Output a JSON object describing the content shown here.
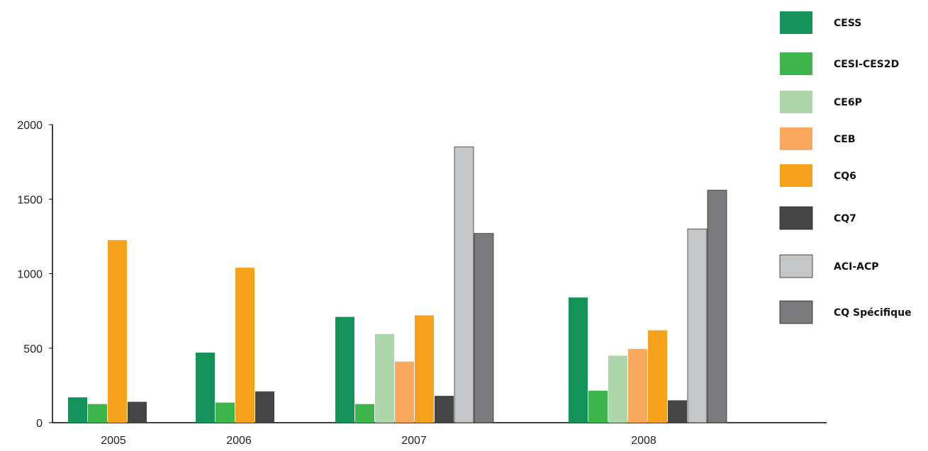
{
  "chart_data": {
    "type": "bar",
    "title": "",
    "xlabel": "",
    "ylabel": "",
    "ylim": [
      0,
      2000
    ],
    "yticks": [
      0,
      500,
      1000,
      1500,
      2000
    ],
    "grid": false,
    "legend": "right",
    "categories": [
      "2005",
      "2006",
      "2007",
      "2008"
    ],
    "series": [
      {
        "name": "CESS",
        "color": "#13925a",
        "values": [
          170,
          470,
          710,
          840
        ]
      },
      {
        "name": "CESI-CES2D",
        "color": "#3db54a",
        "values": [
          125,
          135,
          125,
          215
        ]
      },
      {
        "name": "CE6P",
        "color": "#add7ab",
        "values": [
          null,
          null,
          595,
          450
        ]
      },
      {
        "name": "CEB",
        "color": "#f9a85d",
        "values": [
          null,
          null,
          410,
          495
        ]
      },
      {
        "name": "CQ6",
        "color": "#f7a21d",
        "values": [
          1225,
          1040,
          720,
          620
        ]
      },
      {
        "name": "CQ7",
        "color": "#454545",
        "values": [
          140,
          210,
          180,
          150
        ]
      },
      {
        "name": "ACI-ACP",
        "color": "#c5c6c8",
        "values": [
          null,
          null,
          1850,
          1300
        ]
      },
      {
        "name": "CQ Spécifique",
        "color": "#7a7a7c",
        "values": [
          null,
          null,
          1270,
          1560
        ]
      }
    ]
  }
}
